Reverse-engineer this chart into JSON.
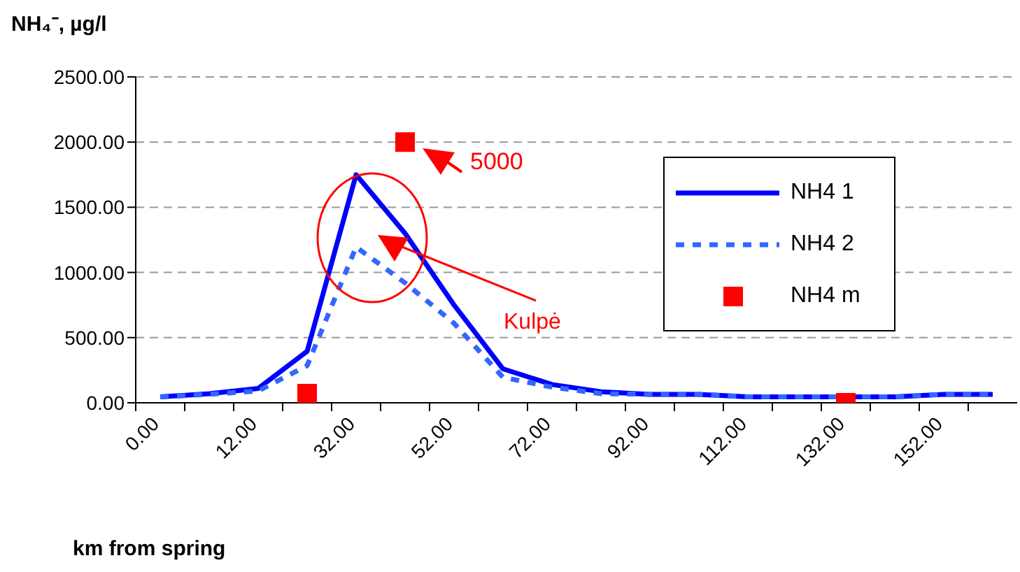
{
  "chart_data": {
    "type": "line",
    "ylabel": "NH₄⁻, µg/l",
    "xlabel": "km from spring",
    "categories": [
      "0.00",
      null,
      "12.00",
      null,
      "32.00",
      null,
      "52.00",
      null,
      "72.00",
      null,
      "92.00",
      null,
      "112.00",
      null,
      "132.00",
      null,
      "152.00",
      null
    ],
    "series": [
      {
        "name": "NH4 1",
        "type": "line",
        "color": "#0000ff",
        "line_style": "solid",
        "values": [
          45,
          70,
          110,
          395,
          1750,
          1300,
          750,
          260,
          140,
          85,
          65,
          65,
          45,
          45,
          45,
          45,
          65,
          65
        ]
      },
      {
        "name": "NH4 2",
        "type": "line",
        "color": "#3366ff",
        "line_style": "dotted",
        "values": [
          45,
          65,
          90,
          285,
          1195,
          920,
          610,
          195,
          120,
          70,
          65,
          65,
          45,
          45,
          45,
          45,
          65,
          65
        ]
      },
      {
        "name": "NH4 m",
        "type": "scatter",
        "color": "#ff0000",
        "marker": "square",
        "values": [
          null,
          null,
          null,
          70,
          null,
          2000,
          null,
          null,
          null,
          null,
          null,
          null,
          null,
          null,
          0,
          null,
          null,
          null
        ]
      }
    ],
    "ylim": [
      0,
      2500
    ],
    "yticks": [
      {
        "value": 0,
        "label": "0.00"
      },
      {
        "value": 500,
        "label": "500.00"
      },
      {
        "value": 1000,
        "label": "1000.00"
      },
      {
        "value": 1500,
        "label": "1500.00"
      },
      {
        "value": 2000,
        "label": "2000.00"
      },
      {
        "value": 2500,
        "label": "2500.00"
      }
    ],
    "grid": "y",
    "legend": "right",
    "annotations": [
      "5000",
      "Kulpė"
    ]
  }
}
